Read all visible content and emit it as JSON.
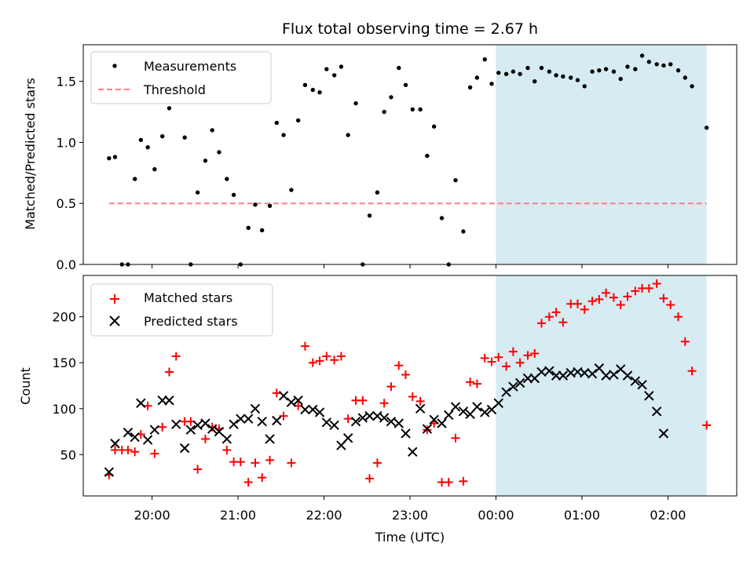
{
  "title": "Flux total observing time = 2.67 h",
  "xlabel": "Time (UTC)",
  "x_ticks": [
    {
      "t": 20.0,
      "label": "20:00"
    },
    {
      "t": 21.0,
      "label": "21:00"
    },
    {
      "t": 22.0,
      "label": "22:00"
    },
    {
      "t": 23.0,
      "label": "23:00"
    },
    {
      "t": 24.0,
      "label": "00:00"
    },
    {
      "t": 25.0,
      "label": "01:00"
    },
    {
      "t": 26.0,
      "label": "02:00"
    }
  ],
  "colors": {
    "measurement": "#000000",
    "threshold": "#ff7f7f",
    "matched": "#ff0000",
    "predicted": "#000000",
    "shade": "#add8e6"
  },
  "chart_data": [
    {
      "type": "scatter",
      "panel": "top",
      "title": "Flux total observing time = 2.67 h",
      "ylabel": "Matched/Predicted stars",
      "xlim": [
        19.2,
        26.8
      ],
      "ylim": [
        0,
        1.8
      ],
      "y_ticks": [
        "0.0",
        "0.5",
        "1.0",
        "1.5"
      ],
      "y_tick_values": [
        0,
        0.5,
        1.0,
        1.5
      ],
      "legend": {
        "position": "top-left",
        "entries": [
          "Measurements",
          "Threshold"
        ]
      },
      "shaded_region": [
        24.0,
        26.45
      ],
      "threshold": {
        "name": "Threshold",
        "value": 0.5,
        "x_range": [
          19.5,
          26.45
        ]
      },
      "series": [
        {
          "name": "Measurements",
          "points": [
            [
              19.5,
              0.87
            ],
            [
              19.57,
              0.88
            ],
            [
              19.65,
              0.0
            ],
            [
              19.72,
              0.0
            ],
            [
              19.8,
              0.7
            ],
            [
              19.87,
              1.02
            ],
            [
              19.95,
              0.96
            ],
            [
              20.03,
              0.78
            ],
            [
              20.12,
              1.05
            ],
            [
              20.2,
              1.28
            ],
            [
              20.28,
              1.45
            ],
            [
              20.38,
              1.04
            ],
            [
              20.45,
              0.0
            ],
            [
              20.53,
              0.59
            ],
            [
              20.62,
              0.85
            ],
            [
              20.7,
              1.1
            ],
            [
              20.78,
              0.92
            ],
            [
              20.87,
              0.7
            ],
            [
              20.95,
              0.57
            ],
            [
              21.03,
              0.0
            ],
            [
              21.12,
              0.3
            ],
            [
              21.2,
              0.49
            ],
            [
              21.28,
              0.28
            ],
            [
              21.37,
              0.48
            ],
            [
              21.45,
              1.16
            ],
            [
              21.53,
              1.06
            ],
            [
              21.62,
              0.61
            ],
            [
              21.7,
              1.18
            ],
            [
              21.78,
              1.47
            ],
            [
              21.87,
              1.43
            ],
            [
              21.95,
              1.41
            ],
            [
              22.03,
              1.6
            ],
            [
              22.12,
              1.55
            ],
            [
              22.2,
              1.62
            ],
            [
              22.28,
              1.06
            ],
            [
              22.37,
              1.32
            ],
            [
              22.45,
              0.0
            ],
            [
              22.53,
              0.4
            ],
            [
              22.62,
              0.59
            ],
            [
              22.7,
              1.25
            ],
            [
              22.78,
              1.37
            ],
            [
              22.87,
              1.61
            ],
            [
              22.95,
              1.47
            ],
            [
              23.03,
              1.27
            ],
            [
              23.12,
              1.27
            ],
            [
              23.2,
              0.89
            ],
            [
              23.28,
              1.13
            ],
            [
              23.37,
              0.38
            ],
            [
              23.45,
              0.0
            ],
            [
              23.53,
              0.69
            ],
            [
              23.62,
              0.27
            ],
            [
              23.7,
              1.45
            ],
            [
              23.78,
              1.53
            ],
            [
              23.87,
              1.68
            ],
            [
              23.95,
              1.48
            ],
            [
              24.03,
              1.57
            ],
            [
              24.12,
              1.56
            ],
            [
              24.2,
              1.58
            ],
            [
              24.28,
              1.56
            ],
            [
              24.37,
              1.61
            ],
            [
              24.45,
              1.5
            ],
            [
              24.53,
              1.61
            ],
            [
              24.62,
              1.58
            ],
            [
              24.7,
              1.55
            ],
            [
              24.78,
              1.54
            ],
            [
              24.87,
              1.53
            ],
            [
              24.95,
              1.51
            ],
            [
              25.03,
              1.46
            ],
            [
              25.12,
              1.58
            ],
            [
              25.2,
              1.59
            ],
            [
              25.28,
              1.6
            ],
            [
              25.37,
              1.58
            ],
            [
              25.45,
              1.52
            ],
            [
              25.53,
              1.62
            ],
            [
              25.62,
              1.6
            ],
            [
              25.7,
              1.71
            ],
            [
              25.78,
              1.66
            ],
            [
              25.87,
              1.64
            ],
            [
              25.95,
              1.63
            ],
            [
              26.03,
              1.64
            ],
            [
              26.12,
              1.59
            ],
            [
              26.2,
              1.53
            ],
            [
              26.28,
              1.46
            ],
            [
              26.45,
              1.12
            ]
          ]
        }
      ]
    },
    {
      "type": "scatter",
      "panel": "bottom",
      "xlabel": "Time (UTC)",
      "ylabel": "Count",
      "xlim": [
        19.2,
        26.8
      ],
      "ylim": [
        5,
        245
      ],
      "y_ticks": [
        "50",
        "100",
        "150",
        "200"
      ],
      "y_tick_values": [
        50,
        100,
        150,
        200
      ],
      "legend": {
        "position": "top-left",
        "entries": [
          "Matched stars",
          "Predicted stars"
        ]
      },
      "shaded_region": [
        24.0,
        26.45
      ],
      "series": [
        {
          "name": "Matched stars",
          "marker": "plus",
          "points": [
            [
              19.5,
              28
            ],
            [
              19.57,
              55
            ],
            [
              19.65,
              55
            ],
            [
              19.72,
              55
            ],
            [
              19.8,
              53
            ],
            [
              19.87,
              72
            ],
            [
              19.95,
              103
            ],
            [
              20.03,
              51
            ],
            [
              20.12,
              80
            ],
            [
              20.2,
              140
            ],
            [
              20.28,
              157
            ],
            [
              20.38,
              86
            ],
            [
              20.45,
              86
            ],
            [
              20.53,
              34
            ],
            [
              20.62,
              67
            ],
            [
              20.7,
              80
            ],
            [
              20.78,
              78
            ],
            [
              20.87,
              55
            ],
            [
              20.95,
              42
            ],
            [
              21.03,
              42
            ],
            [
              21.12,
              20
            ],
            [
              21.2,
              41
            ],
            [
              21.28,
              25
            ],
            [
              21.37,
              44
            ],
            [
              21.45,
              117
            ],
            [
              21.53,
              92
            ],
            [
              21.62,
              41
            ],
            [
              21.7,
              103
            ],
            [
              21.78,
              168
            ],
            [
              21.87,
              150
            ],
            [
              21.95,
              152
            ],
            [
              22.03,
              157
            ],
            [
              22.12,
              153
            ],
            [
              22.2,
              157
            ],
            [
              22.28,
              89
            ],
            [
              22.37,
              109
            ],
            [
              22.45,
              109
            ],
            [
              22.53,
              24
            ],
            [
              22.62,
              41
            ],
            [
              22.7,
              106
            ],
            [
              22.78,
              124
            ],
            [
              22.87,
              147
            ],
            [
              22.95,
              137
            ],
            [
              23.03,
              113
            ],
            [
              23.12,
              108
            ],
            [
              23.2,
              77
            ],
            [
              23.28,
              84
            ],
            [
              23.37,
              20
            ],
            [
              23.45,
              20
            ],
            [
              23.53,
              68
            ],
            [
              23.62,
              21
            ],
            [
              23.7,
              129
            ],
            [
              23.78,
              127
            ],
            [
              23.87,
              155
            ],
            [
              23.95,
              151
            ],
            [
              24.03,
              156
            ],
            [
              24.12,
              146
            ],
            [
              24.2,
              162
            ],
            [
              24.28,
              150
            ],
            [
              24.37,
              158
            ],
            [
              24.45,
              160
            ],
            [
              24.53,
              193
            ],
            [
              24.62,
              200
            ],
            [
              24.7,
              205
            ],
            [
              24.78,
              194
            ],
            [
              24.87,
              214
            ],
            [
              24.95,
              214
            ],
            [
              25.03,
              208
            ],
            [
              25.12,
              217
            ],
            [
              25.2,
              219
            ],
            [
              25.28,
              226
            ],
            [
              25.37,
              221
            ],
            [
              25.45,
              213
            ],
            [
              25.53,
              222
            ],
            [
              25.62,
              228
            ],
            [
              25.7,
              231
            ],
            [
              25.78,
              231
            ],
            [
              25.87,
              236
            ],
            [
              25.95,
              220
            ],
            [
              26.03,
              213
            ],
            [
              26.12,
              200
            ],
            [
              26.2,
              173
            ],
            [
              26.28,
              141
            ],
            [
              26.45,
              82
            ]
          ]
        },
        {
          "name": "Predicted stars",
          "marker": "x",
          "points": [
            [
              19.5,
              31
            ],
            [
              19.57,
              62
            ],
            [
              19.72,
              74
            ],
            [
              19.8,
              69
            ],
            [
              19.87,
              106
            ],
            [
              19.95,
              66
            ],
            [
              20.03,
              77
            ],
            [
              20.12,
              109
            ],
            [
              20.2,
              109
            ],
            [
              20.28,
              83
            ],
            [
              20.38,
              57
            ],
            [
              20.45,
              77
            ],
            [
              20.53,
              82
            ],
            [
              20.62,
              84
            ],
            [
              20.7,
              78
            ],
            [
              20.78,
              75
            ],
            [
              20.87,
              67
            ],
            [
              20.95,
              83
            ],
            [
              21.03,
              89
            ],
            [
              21.12,
              89
            ],
            [
              21.2,
              100
            ],
            [
              21.28,
              86
            ],
            [
              21.37,
              67
            ],
            [
              21.45,
              87
            ],
            [
              21.53,
              114
            ],
            [
              21.62,
              107
            ],
            [
              21.7,
              109
            ],
            [
              21.78,
              99
            ],
            [
              21.87,
              99
            ],
            [
              21.95,
              96
            ],
            [
              22.03,
              85
            ],
            [
              22.12,
              82
            ],
            [
              22.2,
              60
            ],
            [
              22.28,
              68
            ],
            [
              22.37,
              86
            ],
            [
              22.45,
              90
            ],
            [
              22.53,
              92
            ],
            [
              22.62,
              92
            ],
            [
              22.7,
              90
            ],
            [
              22.78,
              86
            ],
            [
              22.87,
              84
            ],
            [
              22.95,
              73
            ],
            [
              23.03,
              53
            ],
            [
              23.12,
              100
            ],
            [
              23.2,
              78
            ],
            [
              23.28,
              88
            ],
            [
              23.37,
              84
            ],
            [
              23.45,
              93
            ],
            [
              23.53,
              102
            ],
            [
              23.62,
              97
            ],
            [
              23.7,
              94
            ],
            [
              23.78,
              102
            ],
            [
              23.87,
              96
            ],
            [
              23.95,
              99
            ],
            [
              24.03,
              106
            ],
            [
              24.12,
              118
            ],
            [
              24.2,
              124
            ],
            [
              24.28,
              128
            ],
            [
              24.37,
              133
            ],
            [
              24.45,
              133
            ],
            [
              24.53,
              140
            ],
            [
              24.62,
              141
            ],
            [
              24.7,
              136
            ],
            [
              24.78,
              136
            ],
            [
              24.87,
              139
            ],
            [
              24.95,
              140
            ],
            [
              25.03,
              139
            ],
            [
              25.12,
              138
            ],
            [
              25.2,
              144
            ],
            [
              25.28,
              136
            ],
            [
              25.37,
              137
            ],
            [
              25.45,
              143
            ],
            [
              25.53,
              136
            ],
            [
              25.62,
              130
            ],
            [
              25.7,
              126
            ],
            [
              25.78,
              114
            ],
            [
              25.87,
              97
            ],
            [
              25.95,
              73
            ]
          ]
        }
      ]
    }
  ]
}
